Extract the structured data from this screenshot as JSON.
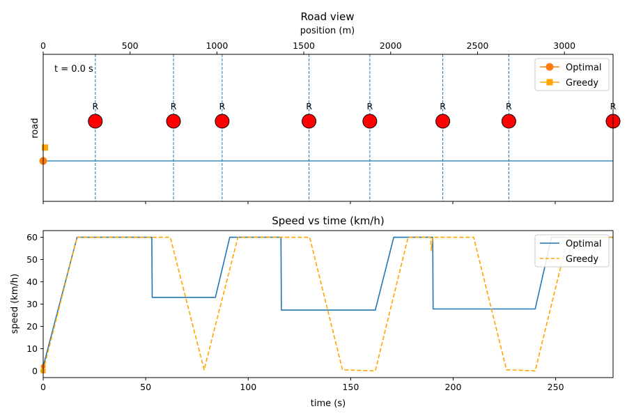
{
  "charts": [
    {
      "type": "scatter",
      "title": "Road view",
      "xlabel": "position (m)",
      "ylabel": "road",
      "xlim": [
        0,
        3280
      ],
      "x_ticks": [
        0,
        500,
        1000,
        1500,
        2000,
        2500,
        3000
      ],
      "time_annotation": "t =   0.0 s",
      "signal_label": "R",
      "signal_positions": [
        300,
        750,
        1030,
        1530,
        1880,
        2300,
        2680,
        3280
      ],
      "road_level": 0,
      "vehicles": [
        {
          "name": "Optimal",
          "position": 0,
          "level": 0,
          "color": "#ff7f0e",
          "marker": "circle"
        },
        {
          "name": "Greedy",
          "position": 10,
          "level": 0.32,
          "color": "#ffa500",
          "marker": "square"
        }
      ],
      "legend": "top-right",
      "grid": false
    },
    {
      "type": "line",
      "title": "Speed vs time (km/h)",
      "xlabel": "time (s)",
      "ylabel": "speed (km/h)",
      "xlim": [
        0,
        278
      ],
      "ylim": [
        -3,
        63
      ],
      "x_ticks": [
        0,
        50,
        100,
        150,
        200,
        250
      ],
      "y_ticks": [
        0,
        10,
        20,
        30,
        40,
        50,
        60
      ],
      "legend": "top-right",
      "grid": false,
      "series": [
        {
          "name": "Optimal",
          "color": "#1f77b4",
          "dash": "solid",
          "points": [
            [
              0,
              2
            ],
            [
              16.5,
              60
            ],
            [
              53,
              60
            ],
            [
              53.2,
              33
            ],
            [
              84,
              33
            ],
            [
              91,
              60
            ],
            [
              116,
              60
            ],
            [
              116.2,
              27.3
            ],
            [
              162,
              27.3
            ],
            [
              171,
              60
            ],
            [
              190,
              60
            ],
            [
              190.2,
              27.8
            ],
            [
              240,
              27.8
            ],
            [
              248,
              60
            ],
            [
              278,
              60
            ]
          ]
        },
        {
          "name": "Greedy",
          "color": "#ffa500",
          "dash": "dashed",
          "points": [
            [
              0,
              0
            ],
            [
              16.5,
              60
            ],
            [
              62,
              60
            ],
            [
              78.5,
              0.5
            ],
            [
              95,
              60
            ],
            [
              130,
              60
            ],
            [
              146,
              0.5
            ],
            [
              162,
              0
            ],
            [
              178,
              60
            ],
            [
              189,
              60
            ],
            [
              189.3,
              54
            ],
            [
              190,
              60
            ],
            [
              210,
              60
            ],
            [
              226,
              0.5
            ],
            [
              240,
              0
            ],
            [
              256,
              60
            ],
            [
              278,
              60
            ]
          ]
        }
      ]
    }
  ]
}
